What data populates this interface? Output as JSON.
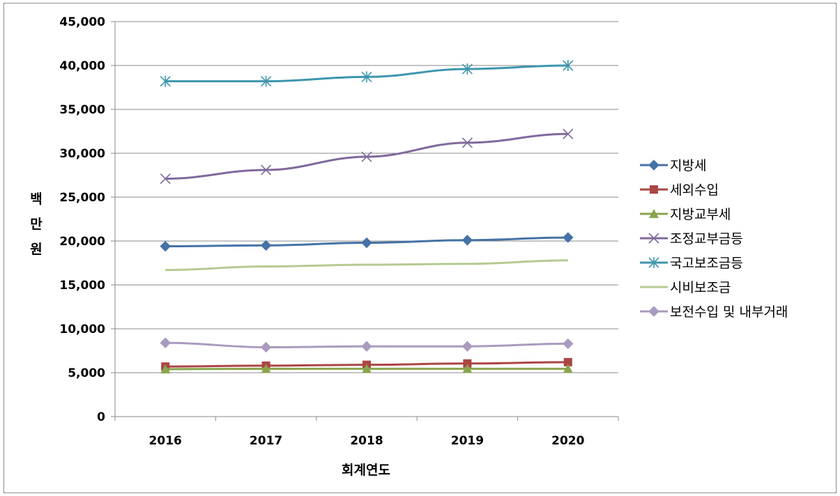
{
  "chart_data": {
    "type": "line",
    "title": "",
    "xlabel": "회계연도",
    "ylabel": "백만원",
    "ylabel_chars": [
      "백",
      "만",
      "원"
    ],
    "categories": [
      "2016",
      "2017",
      "2018",
      "2019",
      "2020"
    ],
    "ylim": [
      0,
      45000
    ],
    "yticks": [
      0,
      5000,
      10000,
      15000,
      20000,
      25000,
      30000,
      35000,
      40000,
      45000
    ],
    "ytick_labels": [
      "0",
      "5,000",
      "10,000",
      "15,000",
      "20,000",
      "25,000",
      "30,000",
      "35,000",
      "40,000",
      "45,000"
    ],
    "grid": true,
    "legend_position": "right",
    "series": [
      {
        "name": "지방세",
        "values": [
          19400,
          19500,
          19800,
          20100,
          20400
        ],
        "color": "#4572a7",
        "marker": "diamond"
      },
      {
        "name": "세외수입",
        "values": [
          5700,
          5800,
          5900,
          6050,
          6200
        ],
        "color": "#aa4643",
        "marker": "square"
      },
      {
        "name": "지방교부세",
        "values": [
          5400,
          5450,
          5450,
          5450,
          5450
        ],
        "color": "#89a54e",
        "marker": "triangle"
      },
      {
        "name": "조정교부금등",
        "values": [
          27100,
          28100,
          29600,
          31200,
          32200
        ],
        "color": "#80699b",
        "marker": "x"
      },
      {
        "name": "국고보조금등",
        "values": [
          38200,
          38200,
          38700,
          39600,
          40000
        ],
        "color": "#3d96ae",
        "marker": "star"
      },
      {
        "name": "시비보조금",
        "values": [
          16700,
          17100,
          17300,
          17400,
          17800
        ],
        "color": "#b5ca92",
        "marker": "none"
      },
      {
        "name": "보전수입 및 내부거래",
        "values": [
          8400,
          7900,
          8000,
          8000,
          8300
        ],
        "color": "#a99bbd",
        "marker": "diamond"
      }
    ]
  }
}
